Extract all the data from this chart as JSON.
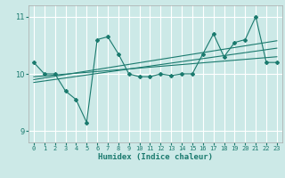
{
  "xlabel": "Humidex (Indice chaleur)",
  "ylabel": "",
  "bg_color": "#cce9e7",
  "grid_color": "#ffffff",
  "line_color": "#1a7a6e",
  "xlim": [
    -0.5,
    23.5
  ],
  "ylim": [
    8.8,
    11.2
  ],
  "yticks": [
    9,
    10,
    11
  ],
  "xticks": [
    0,
    1,
    2,
    3,
    4,
    5,
    6,
    7,
    8,
    9,
    10,
    11,
    12,
    13,
    14,
    15,
    16,
    17,
    18,
    19,
    20,
    21,
    22,
    23
  ],
  "series": {
    "main": {
      "x": [
        0,
        1,
        2,
        3,
        4,
        5,
        6,
        7,
        8,
        9,
        10,
        11,
        12,
        13,
        14,
        15,
        16,
        17,
        18,
        19,
        20,
        21,
        22,
        23
      ],
      "y": [
        10.2,
        10.0,
        10.0,
        9.7,
        9.55,
        9.15,
        10.6,
        10.65,
        10.35,
        10.0,
        9.95,
        9.95,
        10.0,
        9.97,
        10.0,
        10.0,
        10.35,
        10.7,
        10.3,
        10.55,
        10.6,
        11.0,
        10.2,
        10.2
      ]
    },
    "trend1": {
      "x": [
        0,
        23
      ],
      "y": [
        9.95,
        10.3
      ]
    },
    "trend2": {
      "x": [
        0,
        23
      ],
      "y": [
        9.9,
        10.58
      ]
    },
    "trend3": {
      "x": [
        0,
        23
      ],
      "y": [
        9.85,
        10.45
      ]
    }
  }
}
